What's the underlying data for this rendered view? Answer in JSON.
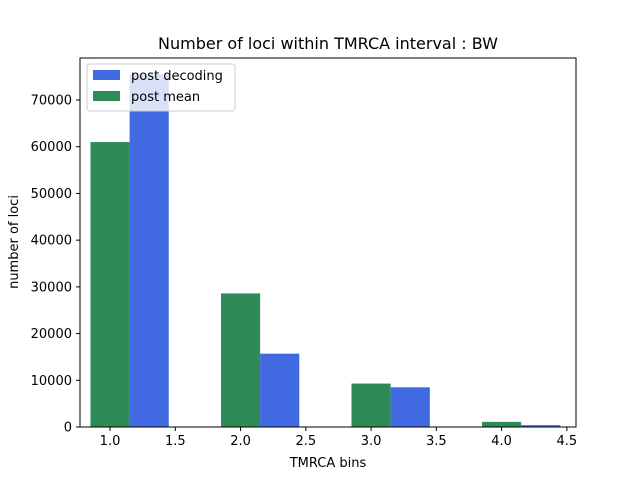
{
  "chart_data": {
    "type": "bar",
    "title": "Number of loci within TMRCA interval : BW",
    "xlabel": "TMRCA bins",
    "ylabel": "number of loci",
    "xlim": [
      0.77,
      4.57
    ],
    "ylim": [
      0,
      79000
    ],
    "bar_width": 0.3,
    "x_ticks": [
      {
        "value": 1.0,
        "label": "1.0"
      },
      {
        "value": 1.5,
        "label": "1.5"
      },
      {
        "value": 2.0,
        "label": "2.0"
      },
      {
        "value": 2.5,
        "label": "2.5"
      },
      {
        "value": 3.0,
        "label": "3.0"
      },
      {
        "value": 3.5,
        "label": "3.5"
      },
      {
        "value": 4.0,
        "label": "4.0"
      },
      {
        "value": 4.5,
        "label": "4.5"
      }
    ],
    "y_ticks": [
      {
        "value": 0,
        "label": "0"
      },
      {
        "value": 10000,
        "label": "10000"
      },
      {
        "value": 20000,
        "label": "20000"
      },
      {
        "value": 30000,
        "label": "30000"
      },
      {
        "value": 40000,
        "label": "40000"
      },
      {
        "value": 50000,
        "label": "50000"
      },
      {
        "value": 60000,
        "label": "60000"
      },
      {
        "value": 70000,
        "label": "70000"
      }
    ],
    "legend_position": "top-left",
    "series": [
      {
        "name": "post decoding",
        "color": "#4169e1",
        "bars": [
          {
            "x": 1.3,
            "value": 75500
          },
          {
            "x": 2.3,
            "value": 15700
          },
          {
            "x": 3.3,
            "value": 8500
          },
          {
            "x": 4.3,
            "value": 400
          }
        ]
      },
      {
        "name": "post mean",
        "color": "#2e8b57",
        "bars": [
          {
            "x": 1.0,
            "value": 61000
          },
          {
            "x": 2.0,
            "value": 28600
          },
          {
            "x": 3.0,
            "value": 9300
          },
          {
            "x": 4.0,
            "value": 1100
          }
        ]
      }
    ]
  }
}
